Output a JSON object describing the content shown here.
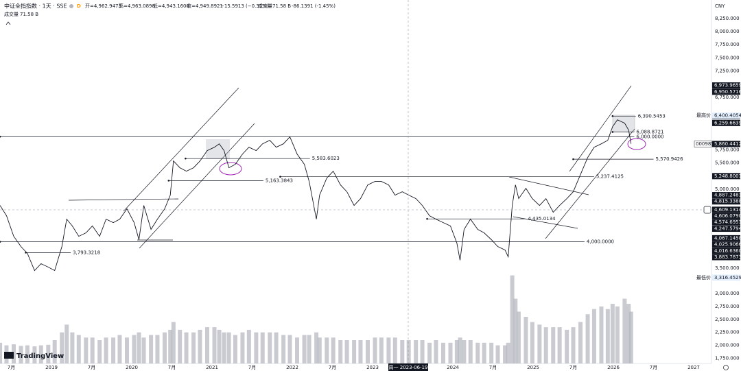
{
  "header": {
    "title": "中证全指指数 · 1天 · SSE",
    "interval_badge": "D",
    "open": "开=4,962.9473",
    "high": "高=4,963.0898",
    "low": "低=4,943.1606",
    "close": "收=4,949.8921",
    "change": "−15.5913 (−0.31%)",
    "volume": "成交量71.58 B",
    "volume_change": "-86.1391 (-1.45%)",
    "volume_row_label": "成交量",
    "volume_row_value": "71.58 B",
    "currency": "CNY",
    "logo": "TradingView"
  },
  "crosshair": {
    "x_label": "周一 2023-06-19"
  },
  "chart_data": [
    {
      "type": "line",
      "color": "#131722",
      "x": [
        2018.36,
        2018.44,
        2018.53,
        2018.62,
        2018.7,
        2018.79,
        2018.87,
        2018.96,
        2019.04,
        2019.13,
        2019.19,
        2019.26,
        2019.34,
        2019.43,
        2019.51,
        2019.6,
        2019.68,
        2019.77,
        2019.85,
        2019.94,
        2020.03,
        2020.09,
        2020.15,
        2020.24,
        2020.32,
        2020.41,
        2020.48,
        2020.52,
        2020.6,
        2020.68,
        2020.77,
        2020.85,
        2020.94,
        2021.03,
        2021.09,
        2021.15,
        2021.21,
        2021.29,
        2021.38,
        2021.46,
        2021.55,
        2021.63,
        2021.72,
        2021.8,
        2021.89,
        2021.97,
        2022.06,
        2022.15,
        2022.21,
        2022.3,
        2022.34,
        2022.43,
        2022.51,
        2022.6,
        2022.68,
        2022.77,
        2022.85,
        2022.94,
        2023.03,
        2023.11,
        2023.2,
        2023.28,
        2023.37,
        2023.45,
        2023.54,
        2023.62,
        2023.71,
        2023.79,
        2023.88,
        2023.97,
        2024.05,
        2024.09,
        2024.14,
        2024.22,
        2024.31,
        2024.39,
        2024.48,
        2024.56,
        2024.65,
        2024.69,
        2024.74,
        2024.78,
        2024.82,
        2024.91,
        2024.99,
        2025.08,
        2025.16,
        2025.25,
        2025.33,
        2025.42,
        2025.5,
        2025.59,
        2025.68,
        2025.76,
        2025.85,
        2025.93,
        2025.99,
        2026.05,
        2026.14,
        2026.19,
        2026.22
      ],
      "values": [
        4690,
        4495,
        4104,
        3909,
        3778,
        3452,
        3583,
        3518,
        3452,
        3909,
        4430,
        4300,
        4104,
        4170,
        4300,
        4104,
        4430,
        4365,
        4430,
        4626,
        4365,
        4039,
        4691,
        4235,
        4430,
        4626,
        4887,
        5538,
        5408,
        5343,
        5408,
        5538,
        5734,
        5799,
        5864,
        5734,
        5408,
        5473,
        5669,
        5799,
        5734,
        5864,
        5930,
        5799,
        5864,
        5995,
        5669,
        5473,
        5147,
        4430,
        4887,
        5213,
        5343,
        5082,
        4952,
        4691,
        4821,
        5082,
        5147,
        5147,
        5082,
        4887,
        4952,
        4887,
        4821,
        4691,
        4495,
        4430,
        4365,
        4300,
        3974,
        3648,
        4235,
        4430,
        4235,
        4170,
        4039,
        3909,
        3843,
        3713,
        4691,
        5082,
        4821,
        5017,
        4821,
        4691,
        4821,
        4561,
        4691,
        4821,
        4952,
        5278,
        5604,
        5799,
        5864,
        5930,
        6190,
        6321,
        6256,
        6125,
        5864
      ],
      "xlim": [
        2018.359,
        2027.205
      ],
      "xticks": [
        {
          "value": 2018.5,
          "label": "7月"
        },
        2019,
        {
          "value": 2019.5,
          "label": "7月"
        },
        2020,
        {
          "value": 2020.5,
          "label": "7月"
        },
        2021,
        {
          "value": 2021.5,
          "label": "7月"
        },
        2022,
        {
          "value": 2022.5,
          "label": "7月"
        },
        2023,
        2024,
        {
          "value": 2024.5,
          "label": "7月"
        },
        2025,
        {
          "value": 2025.5,
          "label": "7月"
        },
        2026,
        {
          "value": 2026.5,
          "label": "7月"
        },
        2027
      ],
      "ylim": [
        3250,
        8600
      ],
      "yticks": [
        {
          "value": 8250,
          "label": "8,250.000"
        },
        {
          "value": 8000,
          "label": "8,000.000"
        },
        {
          "value": 7750,
          "label": "7,750.000"
        },
        {
          "value": 7500,
          "label": "7,500.000"
        },
        {
          "value": 7250,
          "label": "7,250.000"
        },
        {
          "value": 6750,
          "label": "6,750.000"
        },
        {
          "value": 5750,
          "label": "5,750.000"
        },
        {
          "value": 5500,
          "label": "5,500.000"
        },
        {
          "value": 5000,
          "label": "5,000.000"
        },
        {
          "value": 3500,
          "label": "3,500.000"
        }
      ],
      "levels": [
        {
          "value": 3793.3218,
          "label": "3,793.3218",
          "from": 2018.68,
          "to": 2019.24
        },
        {
          "value": 5163.3843,
          "label": "5,163.3843",
          "from": 2020.46,
          "to": 2021.64
        },
        {
          "value": 5583.6023,
          "label": "5,583.6023",
          "from": 2020.67,
          "to": 2022.22
        },
        {
          "value": 4000,
          "label": "4,000.0000",
          "from": 2018.36,
          "to": 2025.64
        },
        {
          "value": 5237.4125,
          "label": "5,237.4125",
          "from": 2021.85,
          "to": 2025.76
        },
        {
          "value": 4435.0134,
          "label": "4,435.0134",
          "from": 2023.68,
          "to": 2024.91
        },
        {
          "value": 5570.9426,
          "label": "5,570.9426",
          "from": 2025.5,
          "to": 2026.5
        },
        {
          "value": 6000,
          "label": "6,000.0000",
          "from": 2018.36,
          "to": 2026.26
        },
        {
          "value": 6088.8721,
          "label": "6,088.8721",
          "from": 2025.99,
          "to": 2026.26
        },
        {
          "value": 6390.5453,
          "label": "6,390.5453",
          "from": 2025.99,
          "to": 2026.28
        }
      ],
      "price_labels": [
        {
          "value": 6973.9659,
          "label": "6,973.9659"
        },
        {
          "value": 6950.5716,
          "label": "6,950.5716"
        },
        {
          "value": 6389.7554,
          "label": "6,389.7554"
        },
        {
          "value": 6259.6639,
          "label": "6,259.6639"
        },
        {
          "value": 5248.8001,
          "label": "5,248.8001"
        },
        {
          "value": 4887.2481,
          "label": "4,887.2481"
        },
        {
          "value": 4815.3388,
          "label": "4,815.3388"
        },
        {
          "value": 4606.079,
          "label": "4,606.0790"
        },
        {
          "value": 4609.1314,
          "label": "4,609.1314"
        },
        {
          "value": 4574.6951,
          "label": "4,574.6951"
        },
        {
          "value": 4247.5794,
          "label": "4,247.5794"
        },
        {
          "value": 4067.1458,
          "label": "4,067.1458"
        },
        {
          "value": 4025.9066,
          "label": "4,025.9066"
        },
        {
          "value": 4016.636,
          "label": "4,016.6360"
        },
        {
          "value": 3883.7873,
          "label": "3,883.7873"
        }
      ],
      "high_label": {
        "caption": "最高价",
        "value": 6400.4054,
        "label": "6,400.4054"
      },
      "low_label": {
        "caption": "最低价",
        "value": 3316.4529,
        "label": "3,316.4529"
      },
      "last_label": {
        "symbol": "000985",
        "value": 5860.4412,
        "label": "5,860.4412"
      }
    },
    {
      "type": "bar",
      "color": "#b2b5be",
      "x": [
        2018.36,
        2018.44,
        2018.53,
        2018.62,
        2018.7,
        2018.79,
        2018.87,
        2018.96,
        2019.04,
        2019.13,
        2019.19,
        2019.26,
        2019.34,
        2019.43,
        2019.51,
        2019.6,
        2019.68,
        2019.77,
        2019.85,
        2019.94,
        2020.03,
        2020.09,
        2020.15,
        2020.24,
        2020.32,
        2020.41,
        2020.48,
        2020.52,
        2020.6,
        2020.68,
        2020.77,
        2020.85,
        2020.94,
        2021.03,
        2021.09,
        2021.15,
        2021.21,
        2021.29,
        2021.38,
        2021.46,
        2021.55,
        2021.63,
        2021.72,
        2021.8,
        2021.89,
        2021.97,
        2022.06,
        2022.15,
        2022.21,
        2022.3,
        2022.34,
        2022.43,
        2022.51,
        2022.6,
        2022.68,
        2022.77,
        2022.85,
        2022.94,
        2023.03,
        2023.11,
        2023.2,
        2023.28,
        2023.37,
        2023.45,
        2023.54,
        2023.62,
        2023.71,
        2023.79,
        2023.88,
        2023.97,
        2024.05,
        2024.09,
        2024.14,
        2024.22,
        2024.31,
        2024.39,
        2024.48,
        2024.56,
        2024.65,
        2024.69,
        2024.74,
        2024.78,
        2024.82,
        2024.91,
        2024.99,
        2025.08,
        2025.16,
        2025.25,
        2025.33,
        2025.42,
        2025.5,
        2025.59,
        2025.68,
        2025.76,
        2025.85,
        2025.93,
        2025.99,
        2026.05,
        2026.14,
        2026.19,
        2026.22
      ],
      "values": [
        2050,
        2000,
        2020,
        1990,
        2000,
        1980,
        2000,
        2010,
        2100,
        2250,
        2400,
        2250,
        2200,
        2150,
        2150,
        2100,
        2150,
        2150,
        2200,
        2150,
        2200,
        2250,
        2150,
        2200,
        2200,
        2250,
        2300,
        2450,
        2300,
        2250,
        2250,
        2300,
        2350,
        2350,
        2300,
        2250,
        2250,
        2200,
        2250,
        2300,
        2250,
        2250,
        2250,
        2250,
        2200,
        2200,
        2150,
        2200,
        2200,
        2250,
        2150,
        2150,
        2150,
        2100,
        2100,
        2100,
        2100,
        2100,
        2150,
        2150,
        2150,
        2150,
        2100,
        2100,
        2100,
        2100,
        2050,
        2100,
        2050,
        2050,
        2100,
        2150,
        2100,
        2100,
        2050,
        2050,
        2050,
        2000,
        2000,
        2050,
        3350,
        2900,
        2650,
        2550,
        2450,
        2400,
        2350,
        2350,
        2350,
        2300,
        2350,
        2450,
        2600,
        2700,
        2750,
        2700,
        2800,
        2750,
        2900,
        2800,
        2650
      ],
      "ylim": [
        1650,
        3450
      ],
      "yticks": [
        {
          "value": 3000,
          "label": "3,000.000"
        },
        {
          "value": 2750,
          "label": "2,750.000"
        },
        {
          "value": 2500,
          "label": "2,500.000"
        },
        {
          "value": 2250,
          "label": "2,250.000"
        },
        {
          "value": 2000,
          "label": "2,000.000"
        },
        {
          "value": 1750,
          "label": "1,750.000"
        }
      ]
    }
  ]
}
